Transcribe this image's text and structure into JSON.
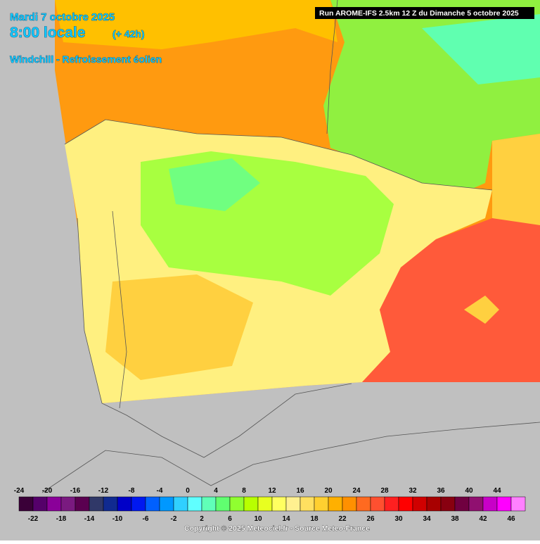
{
  "header": {
    "date": "Mardi 7 octobre 2025",
    "time": "8:00 locale",
    "lead": "(+ 42h)",
    "parameter": "Windchill - Refroissement éolien",
    "run": "Run AROME-IFS 2.5km 12 Z du Dimanche 5 octobre 2025"
  },
  "legend": {
    "labels": [
      -24,
      -22,
      -20,
      -18,
      -16,
      -14,
      -12,
      -10,
      -8,
      -6,
      -4,
      -2,
      0,
      2,
      4,
      6,
      8,
      10,
      12,
      14,
      16,
      18,
      20,
      22,
      24,
      26,
      28,
      30,
      32,
      34,
      36,
      38,
      40,
      42,
      44,
      46
    ],
    "colors": [
      "#3a0038",
      "#55006a",
      "#8a0099",
      "#7a1a80",
      "#5a0050",
      "#303868",
      "#102a90",
      "#0000c8",
      "#0018f0",
      "#0060ff",
      "#0098ff",
      "#30d0ff",
      "#60ffff",
      "#60ffb8",
      "#60ff70",
      "#90ff30",
      "#b8ff00",
      "#e8ff20",
      "#ffff60",
      "#fff090",
      "#ffe060",
      "#ffd030",
      "#ffb000",
      "#ff9000",
      "#ff6a20",
      "#ff5030",
      "#ff2020",
      "#ff0000",
      "#d00000",
      "#a80000",
      "#880010",
      "#700040",
      "#901070",
      "#c800c8",
      "#ff00ff",
      "#ff80ff"
    ]
  },
  "footer": {
    "copyright": "Copyright © 2025 Meteociel.fr - Source Meteo-France"
  }
}
